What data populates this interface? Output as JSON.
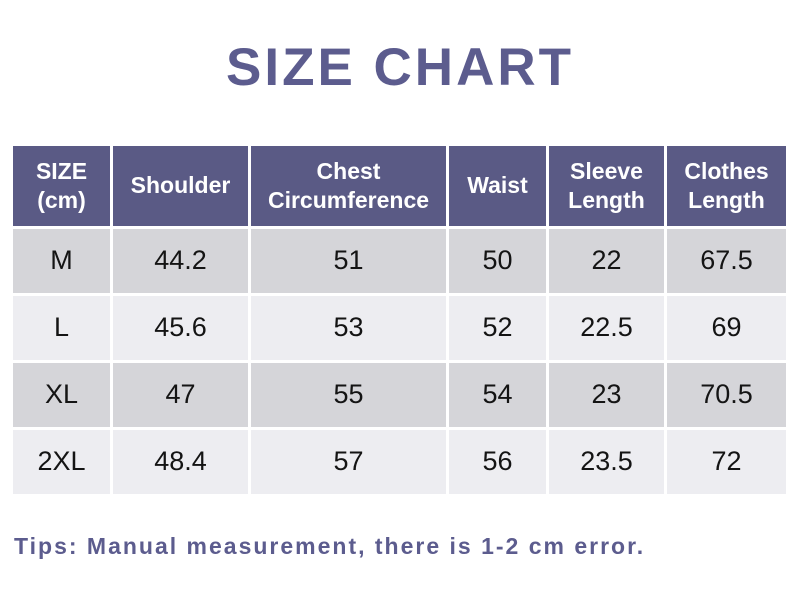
{
  "title": "SIZE CHART",
  "tip": "Tips: Manual measurement, there is 1-2 cm error.",
  "colors": {
    "title_text": "#5c5c8e",
    "header_bg": "#5a5a85",
    "header_text": "#ffffff",
    "row_dark_bg": "#d5d5d9",
    "row_light_bg": "#ededf1",
    "cell_text": "#141414",
    "tip_text": "#5c5c8e",
    "page_bg": "#ffffff"
  },
  "table": {
    "header_cells": [
      "SIZE\n(cm)",
      "Shoulder",
      "Chest\nCircumference",
      "Waist",
      "Sleeve\nLength",
      "Clothes\nLength"
    ]
  },
  "chart_data": {
    "type": "table",
    "title": "SIZE CHART",
    "columns": [
      "SIZE (cm)",
      "Shoulder",
      "Chest Circumference",
      "Waist",
      "Sleeve Length",
      "Clothes Length"
    ],
    "rows": [
      [
        "M",
        44.2,
        51,
        50,
        22,
        67.5
      ],
      [
        "L",
        45.6,
        53,
        52,
        22.5,
        69
      ],
      [
        "XL",
        47,
        55,
        54,
        23,
        70.5
      ],
      [
        "2XL",
        48.4,
        57,
        56,
        23.5,
        72
      ]
    ],
    "note": "Tips: Manual measurement, there is 1-2 cm error."
  }
}
